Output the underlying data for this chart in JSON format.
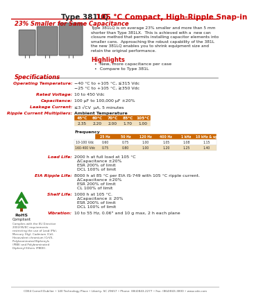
{
  "title_black": "Type 381LQ ",
  "title_red": "105 °C Compact, High-Ripple Snap-in",
  "subtitle": "23% Smaller for Same Capacitance",
  "bg_color": "#ffffff",
  "red_color": "#cc0000",
  "orange_color": "#cc6600",
  "description": "Type 381LQ is on average 23% smaller and more than 5 mm\nshorter than Type 381LX.  This is achieved with a  new can\nclosure method that permits installing capacitor elements into\nsmaller cans.  Approaching the robust capability of the 381L\nthe new 381LQ enables you to shrink equipment size and\nretain the original performance.",
  "highlights_title": "Highlights",
  "highlights": [
    "New, more capacitance per case",
    "Compare to Type 381L"
  ],
  "specs_title": "Specifications",
  "spec_labels": [
    "Operating Temperature:",
    "Rated Voltage:",
    "Capacitance:",
    "Leakage Current:",
    "Ripple Current Multipliers:"
  ],
  "spec_values": [
    "−40 °C to +105 °C, ≤315 Vdc\n−25 °C to +105 °C, ≥350 Vdc",
    "10 to 450 Vdc",
    "100 μF to 100,000 μF ±20%",
    "≤3 √CV  μA, 5 minutes",
    "Ambient Temperature"
  ],
  "temp_headers": [
    "45°C",
    "60°C",
    "70°C",
    "85°C",
    "105°C"
  ],
  "temp_values": [
    "2.35",
    "2.20",
    "2.00",
    "1.70",
    "1.00"
  ],
  "freq_headers": [
    "25 Hz",
    "50 Hz",
    "120 Hz",
    "400 Hz",
    "1 kHz",
    "10 kHz & up"
  ],
  "freq_rows": [
    [
      "10-100 Vdc",
      "0.60",
      "0.75",
      "1.00",
      "1.05",
      "1.08",
      "1.15"
    ],
    [
      "160-400 Vdc",
      "0.75",
      "0.80",
      "1.00",
      "1.20",
      "1.25",
      "1.40"
    ]
  ],
  "freq_label": "Frequency",
  "load_life_label": "Load Life:",
  "load_life_values": [
    "2000 h at full load at 105 °C",
    "ΔCapacitance ±20%",
    "ESR 200% of limit",
    "DCL 100% of limit"
  ],
  "eia_label": "EIA Ripple Life:",
  "eia_values": [
    "8000 h at 85 °C per EIA IS-749 with 105 °C ripple current.",
    "ΔCapacitance ±20%",
    "ESR 200% of limit",
    "CL 100% of limit"
  ],
  "shelf_label": "Shelf Life:",
  "shelf_values": [
    "1000 h at 105 °C.",
    "ΔCapacitance ± 20%",
    "ESR 200% of limit",
    "DCL 100% of limit"
  ],
  "vib_label": "Vibration:",
  "vib_values": [
    "10 to 55 Hz, 0.06\" and 10 g max, 2 h each plane"
  ],
  "footer": "CDE4 Cornell Dubilier • 140 Technology Place • Liberty, SC 29657 • Phone: (864)843-2277 • Fax: (864)843-3800 • www.cde.com",
  "rohs_sub": "Complies with the EU Directive\n2002/95/EC requirements\nrestricting the use of Lead (Pb),\nMercury (Hg), Cadmium (Cd),\nHexavalent chromium (CrVI),\nPolybrominated Biphenyls\n(PBB) and Polybrominated\nDiphenyl Ethers (PBDE).",
  "table_header_bg": "#cc6600",
  "table_alt_bg": "#f0e0c0",
  "table2_header_bg": "#cc6600"
}
